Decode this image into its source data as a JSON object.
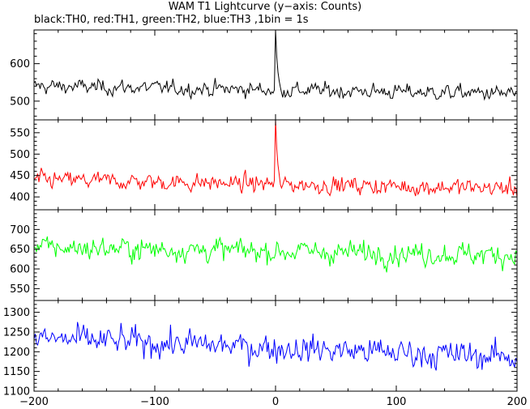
{
  "chart_data": {
    "type": "line",
    "title": "WAM T1 Lightcurve (y−axis: Counts)",
    "subtitle": "black:TH0, red:TH1, green:TH2, blue:TH3 ,1bin = 1s",
    "x_axis": {
      "range": [
        -200,
        200
      ],
      "ticks": [
        -200,
        -100,
        0,
        100,
        200
      ],
      "tick_labels": [
        "−200",
        "−100",
        "0",
        "100",
        "200"
      ]
    },
    "series": [
      {
        "name": "TH0",
        "color": "#000000",
        "ylim": [
          450,
          690
        ],
        "y_ticks": [
          500,
          600
        ],
        "y_tick_labels": [
          "500",
          "600"
        ],
        "approx_baseline": 530,
        "noise": 16,
        "trend_per_s": -0.05,
        "peak": {
          "x": 0,
          "value": 690
        }
      },
      {
        "name": "TH1",
        "color": "#ff0000",
        "ylim": [
          370,
          580
        ],
        "y_ticks": [
          400,
          450,
          500,
          550
        ],
        "y_tick_labels": [
          "400",
          "450",
          "500",
          "550"
        ],
        "approx_baseline": 430,
        "noise": 16,
        "trend_per_s": -0.05,
        "peak": {
          "x": 0,
          "value": 580
        }
      },
      {
        "name": "TH2",
        "color": "#00ff00",
        "ylim": [
          520,
          750
        ],
        "y_ticks": [
          550,
          600,
          650,
          700
        ],
        "y_tick_labels": [
          "550",
          "600",
          "650",
          "700"
        ],
        "approx_baseline": 645,
        "noise": 23,
        "trend_per_s": -0.05
      },
      {
        "name": "TH3",
        "color": "#0000ff",
        "ylim": [
          1100,
          1330
        ],
        "y_ticks": [
          1100,
          1150,
          1200,
          1250,
          1300
        ],
        "y_tick_labels": [
          "1100",
          "1150",
          "1200",
          "1250",
          "1300"
        ],
        "approx_baseline": 1210,
        "noise": 28,
        "trend_per_s": -0.12
      }
    ]
  }
}
